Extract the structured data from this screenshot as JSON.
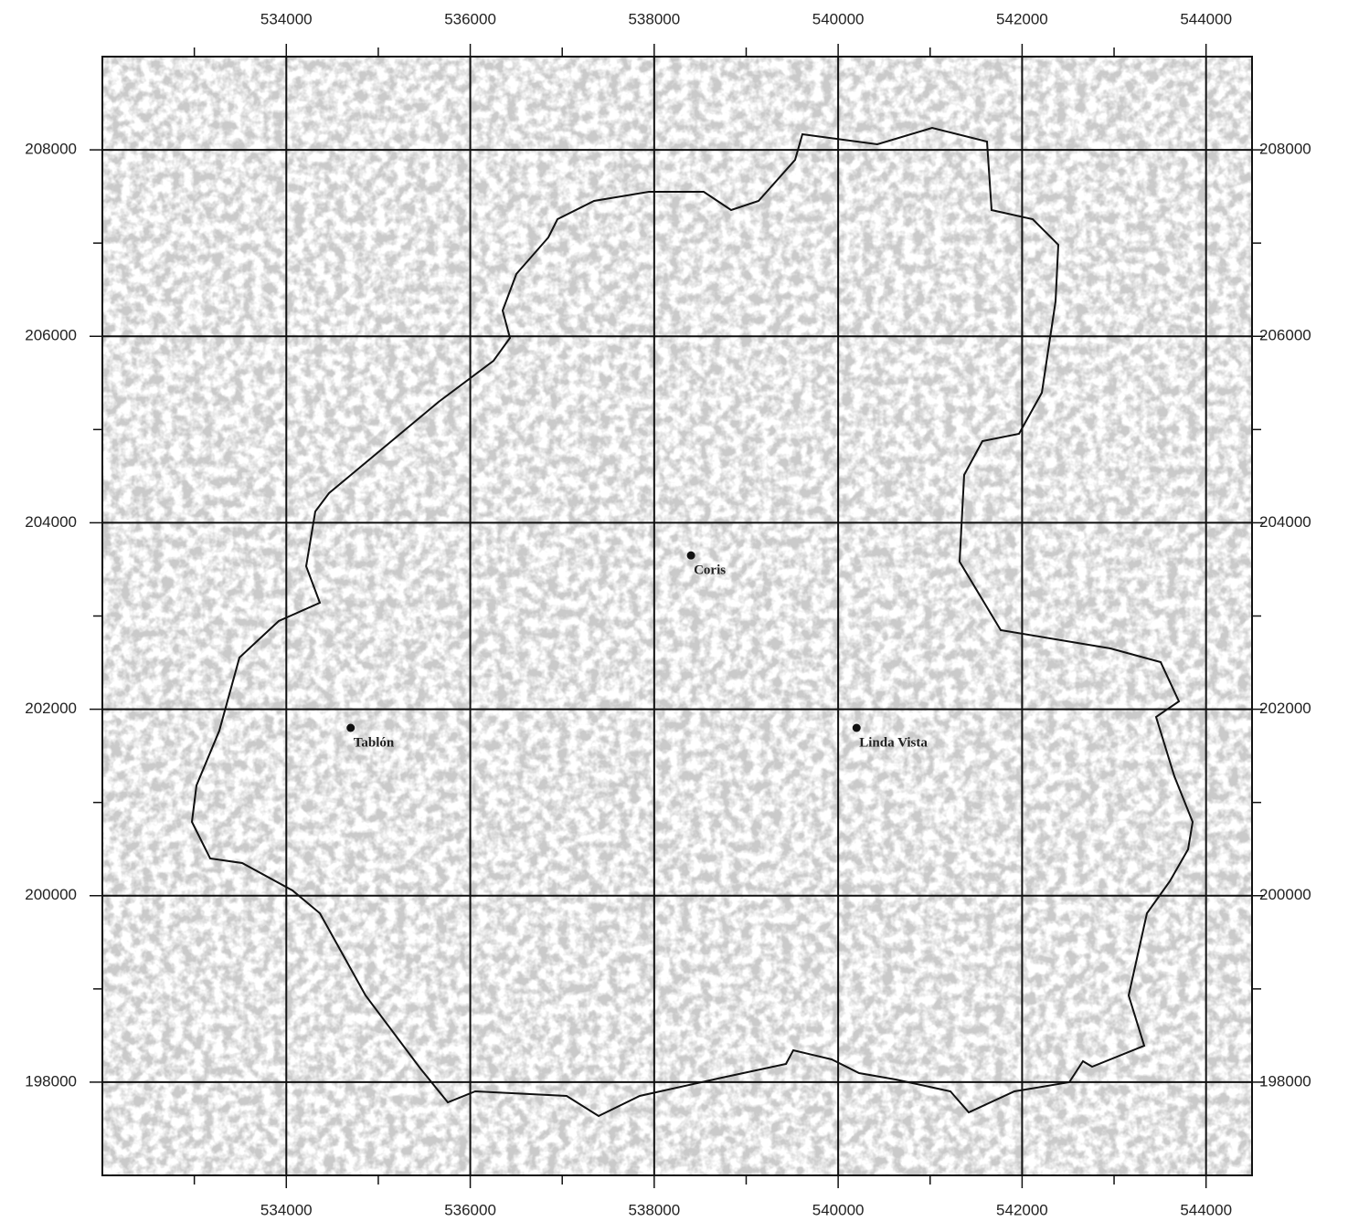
{
  "chart_data": {
    "type": "map",
    "xlim": [
      532000,
      544500
    ],
    "ylim": [
      197000,
      209000
    ],
    "xticks": [
      534000,
      536000,
      538000,
      540000,
      542000,
      544000
    ],
    "yticks": [
      198000,
      200000,
      202000,
      204000,
      206000,
      208000
    ],
    "xminorticks": [
      533000,
      535000,
      537000,
      539000,
      541000,
      543000
    ],
    "yminorticks": [
      199000,
      201000,
      203000,
      205000,
      207000
    ],
    "grid": true,
    "places": [
      {
        "name": "Coris",
        "x": 538400,
        "y": 203650
      },
      {
        "name": "Tablón",
        "x": 534700,
        "y": 201800
      },
      {
        "name": "Linda Vista",
        "x": 540200,
        "y": 201800
      }
    ]
  }
}
